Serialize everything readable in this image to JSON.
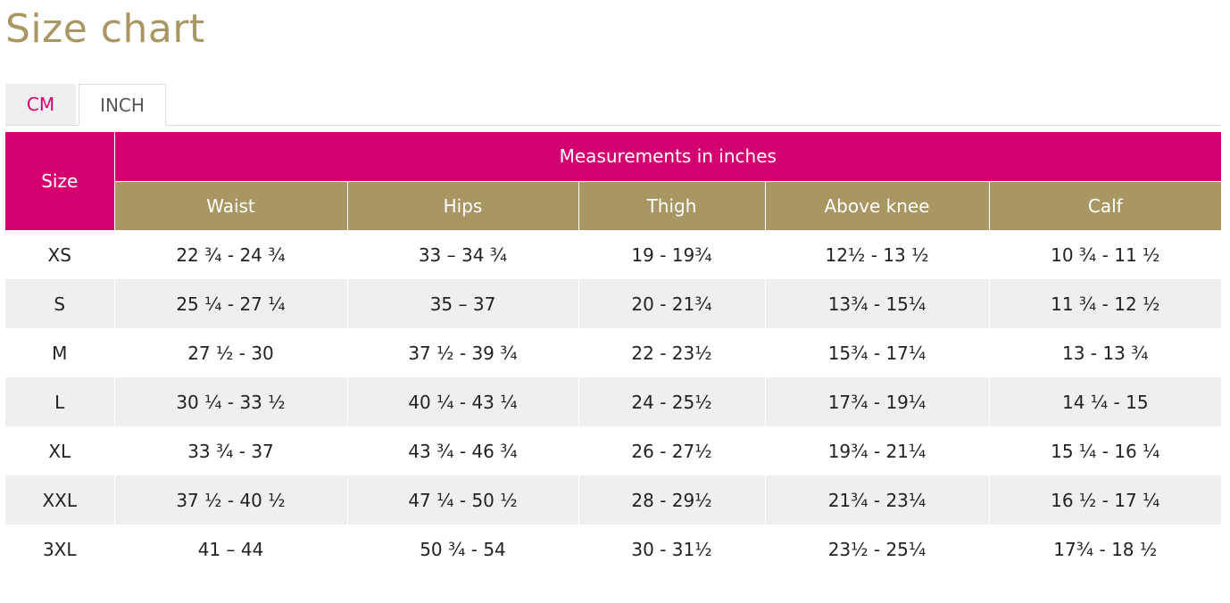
{
  "page": {
    "title": "Size chart"
  },
  "tabs": [
    {
      "label": "CM"
    },
    {
      "label": "INCH"
    }
  ],
  "table": {
    "size_header": "Size",
    "group_header": "Measurements in inches",
    "columns": [
      "Waist",
      "Hips",
      "Thigh",
      "Above knee",
      "Calf"
    ],
    "rows": [
      [
        "XS",
        "22 ¾ - 24 ¾",
        "33 – 34 ¾",
        "19 - 19¾",
        "12½ - 13 ½",
        "10 ¾ - 11 ½"
      ],
      [
        "S",
        "25 ¼ - 27 ¼",
        "35 – 37",
        "20 - 21¾",
        "13¾ - 15¼",
        "11 ¾ - 12 ½"
      ],
      [
        "M",
        "27 ½ - 30",
        "37 ½ - 39 ¾",
        "22 - 23½",
        "15¾ - 17¼",
        "13 - 13 ¾"
      ],
      [
        "L",
        "30 ¼ - 33 ½",
        "40 ¼ - 43 ¼",
        "24 - 25½",
        "17¾ - 19¼",
        "14 ¼ - 15"
      ],
      [
        "XL",
        "33 ¾ - 37",
        "43 ¾ - 46 ¾",
        "26 - 27½",
        "19¾ - 21¼",
        "15 ¼ - 16 ¼"
      ],
      [
        "XXL",
        "37 ½ - 40 ½",
        "47 ¼ - 50 ½",
        "28 - 29½",
        "21¾ - 23¼",
        "16 ½ - 17 ¼"
      ],
      [
        "3XL",
        "41 – 44",
        "50 ¾ - 54",
        "30 - 31½",
        "23½ - 25¼",
        "17¾ - 18 ½"
      ]
    ]
  },
  "colors": {
    "brand_magenta": "#d4006f",
    "gold": "#a89663",
    "stripe": "#efefef"
  }
}
